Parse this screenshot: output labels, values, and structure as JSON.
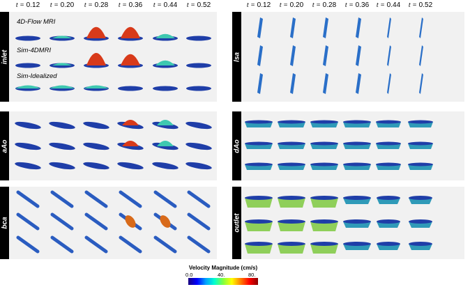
{
  "time_labels": [
    "0.12",
    "0.20",
    "0.28",
    "0.36",
    "0.44",
    "0.52"
  ],
  "time_prefix": "t =",
  "panels": [
    {
      "id": "inlet",
      "label": "inlet",
      "row_labels": [
        "4D-Flow MRI",
        "Sim-4DMRI",
        "Sim-Idealized"
      ]
    },
    {
      "id": "lsa",
      "label": "lsa",
      "row_labels": []
    },
    {
      "id": "aAo",
      "label": "aAo",
      "row_labels": []
    },
    {
      "id": "dAo",
      "label": "dAo",
      "row_labels": []
    },
    {
      "id": "bca",
      "label": "bca",
      "row_labels": []
    },
    {
      "id": "outlet",
      "label": "outlet",
      "row_labels": []
    }
  ],
  "colorbar": {
    "title": "Velocity Magnitude (cm/s)",
    "ticks": [
      "0.0",
      "40.",
      "80."
    ],
    "colors": [
      "#1a0080",
      "#0000ff",
      "#00a0ff",
      "#00ffd0",
      "#80ff40",
      "#ffff00",
      "#ff8000",
      "#ff0000",
      "#8b0000"
    ]
  }
}
